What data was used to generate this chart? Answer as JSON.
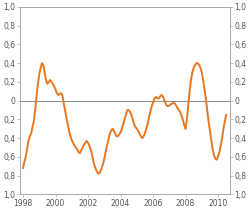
{
  "title": "",
  "xlim": [
    1997.8,
    2010.75
  ],
  "ylim": [
    1.0,
    -1.0
  ],
  "xticks": [
    1998,
    2000,
    2002,
    2004,
    2006,
    2008,
    2010
  ],
  "yticks": [
    1.0,
    0.8,
    0.6,
    0.4,
    0.2,
    0.0,
    -0.2,
    -0.4,
    -0.6,
    -0.8,
    -1.0
  ],
  "ytick_labels": [
    "1,0",
    "0,8",
    "0,6",
    "0,4",
    "0,2",
    "0",
    "0,2",
    "0,4",
    "0,6",
    "0,8",
    "1,0"
  ],
  "line_color": "#E87722",
  "line_width": 1.4,
  "background_color": "#ffffff",
  "zero_line_color": "#888888",
  "x": [
    1998.0,
    1998.083,
    1998.167,
    1998.25,
    1998.333,
    1998.417,
    1998.5,
    1998.583,
    1998.667,
    1998.75,
    1998.833,
    1998.917,
    1999.0,
    1999.083,
    1999.167,
    1999.25,
    1999.333,
    1999.417,
    1999.5,
    1999.583,
    1999.667,
    1999.75,
    1999.833,
    1999.917,
    2000.0,
    2000.083,
    2000.167,
    2000.25,
    2000.333,
    2000.417,
    2000.5,
    2000.583,
    2000.667,
    2000.75,
    2000.833,
    2000.917,
    2001.0,
    2001.083,
    2001.167,
    2001.25,
    2001.333,
    2001.417,
    2001.5,
    2001.583,
    2001.667,
    2001.75,
    2001.833,
    2001.917,
    2002.0,
    2002.083,
    2002.167,
    2002.25,
    2002.333,
    2002.417,
    2002.5,
    2002.583,
    2002.667,
    2002.75,
    2002.833,
    2002.917,
    2003.0,
    2003.083,
    2003.167,
    2003.25,
    2003.333,
    2003.417,
    2003.5,
    2003.583,
    2003.667,
    2003.75,
    2003.833,
    2003.917,
    2004.0,
    2004.083,
    2004.167,
    2004.25,
    2004.333,
    2004.417,
    2004.5,
    2004.583,
    2004.667,
    2004.75,
    2004.833,
    2004.917,
    2005.0,
    2005.083,
    2005.167,
    2005.25,
    2005.333,
    2005.417,
    2005.5,
    2005.583,
    2005.667,
    2005.75,
    2005.833,
    2005.917,
    2006.0,
    2006.083,
    2006.167,
    2006.25,
    2006.333,
    2006.417,
    2006.5,
    2006.583,
    2006.667,
    2006.75,
    2006.833,
    2006.917,
    2007.0,
    2007.083,
    2007.167,
    2007.25,
    2007.333,
    2007.417,
    2007.5,
    2007.583,
    2007.667,
    2007.75,
    2007.833,
    2007.917,
    2008.0,
    2008.083,
    2008.167,
    2008.25,
    2008.333,
    2008.417,
    2008.5,
    2008.583,
    2008.667,
    2008.75,
    2008.833,
    2008.917,
    2009.0,
    2009.083,
    2009.167,
    2009.25,
    2009.333,
    2009.417,
    2009.5,
    2009.583,
    2009.667,
    2009.75,
    2009.833,
    2009.917,
    2010.0,
    2010.083,
    2010.167,
    2010.25,
    2010.333,
    2010.417,
    2010.5
  ],
  "y": [
    0.72,
    0.65,
    0.6,
    0.52,
    0.43,
    0.38,
    0.35,
    0.28,
    0.22,
    0.1,
    -0.05,
    -0.18,
    -0.28,
    -0.35,
    -0.4,
    -0.38,
    -0.3,
    -0.22,
    -0.18,
    -0.2,
    -0.22,
    -0.2,
    -0.18,
    -0.15,
    -0.12,
    -0.08,
    -0.06,
    -0.07,
    -0.08,
    -0.06,
    0.02,
    0.1,
    0.18,
    0.25,
    0.32,
    0.38,
    0.42,
    0.45,
    0.48,
    0.5,
    0.52,
    0.55,
    0.56,
    0.53,
    0.5,
    0.47,
    0.45,
    0.43,
    0.45,
    0.48,
    0.52,
    0.58,
    0.65,
    0.7,
    0.74,
    0.77,
    0.78,
    0.76,
    0.72,
    0.68,
    0.62,
    0.55,
    0.48,
    0.42,
    0.36,
    0.32,
    0.3,
    0.32,
    0.35,
    0.38,
    0.38,
    0.36,
    0.34,
    0.3,
    0.25,
    0.2,
    0.15,
    0.1,
    0.1,
    0.12,
    0.15,
    0.2,
    0.25,
    0.28,
    0.3,
    0.32,
    0.35,
    0.38,
    0.4,
    0.38,
    0.35,
    0.3,
    0.25,
    0.18,
    0.12,
    0.06,
    0.02,
    -0.02,
    -0.04,
    -0.03,
    -0.02,
    -0.04,
    -0.06,
    -0.05,
    -0.02,
    0.02,
    0.05,
    0.06,
    0.05,
    0.04,
    0.03,
    0.02,
    0.03,
    0.05,
    0.08,
    0.1,
    0.12,
    0.16,
    0.2,
    0.26,
    0.3,
    0.2,
    0.05,
    -0.1,
    -0.22,
    -0.3,
    -0.35,
    -0.38,
    -0.4,
    -0.4,
    -0.38,
    -0.35,
    -0.3,
    -0.22,
    -0.12,
    -0.02,
    0.1,
    0.22,
    0.32,
    0.42,
    0.52,
    0.58,
    0.62,
    0.63,
    0.6,
    0.55,
    0.48,
    0.4,
    0.3,
    0.22,
    0.15
  ]
}
